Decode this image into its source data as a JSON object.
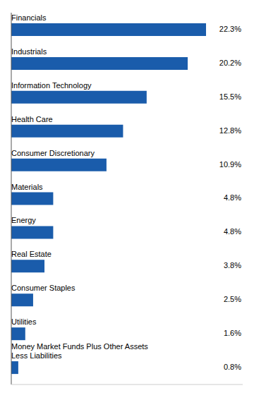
{
  "chart_data": {
    "type": "bar",
    "orientation": "horizontal",
    "categories": [
      "Financials",
      "Industrials",
      "Information Technology",
      "Health Care",
      "Consumer Discretionary",
      "Materials",
      "Energy",
      "Real Estate",
      "Consumer Staples",
      "Utilities",
      "Money Market Funds Plus Other Assets\nLess Liabilities"
    ],
    "values": [
      22.3,
      20.2,
      15.5,
      12.8,
      10.9,
      4.8,
      4.8,
      3.8,
      2.5,
      1.6,
      0.8
    ],
    "value_labels": [
      "22.3%",
      "20.2%",
      "15.5%",
      "12.8%",
      "10.9%",
      "4.8%",
      "4.8%",
      "3.8%",
      "2.5%",
      "1.6%",
      "0.8%"
    ],
    "color": "#1A5CAB",
    "xlim": [
      0,
      26.5
    ],
    "data_labels": true,
    "tick_labels": false
  }
}
